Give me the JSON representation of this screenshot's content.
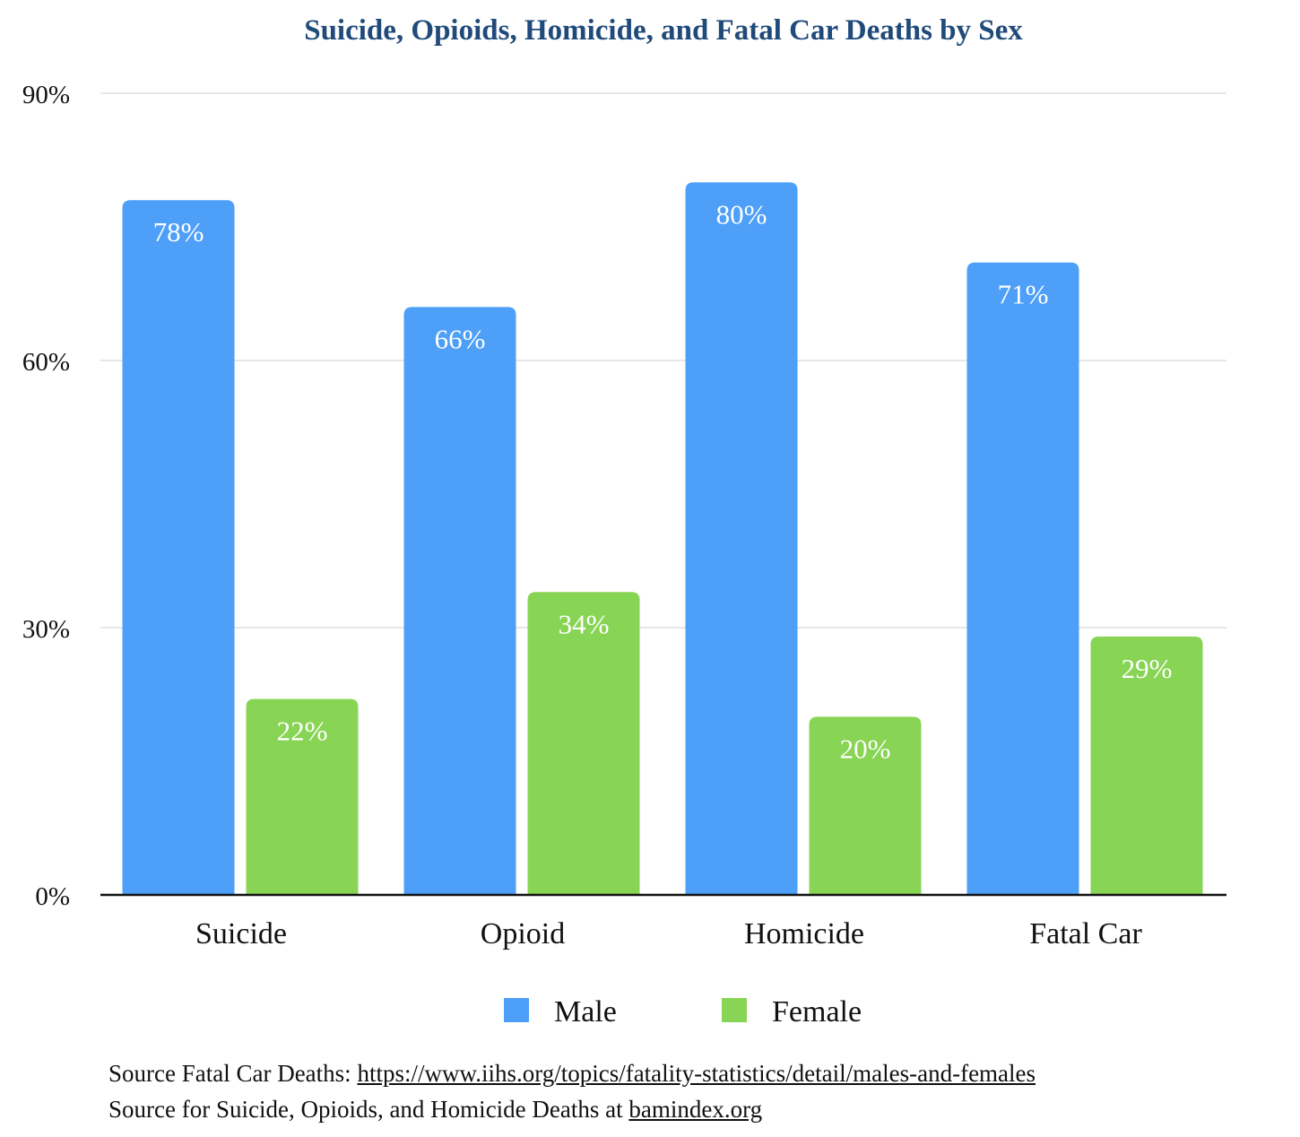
{
  "chart_data": {
    "type": "bar",
    "title": "Suicide, Opioids, Homicide, and Fatal Car Deaths by Sex",
    "categories": [
      "Suicide",
      "Opioid",
      "Homicide",
      "Fatal Car"
    ],
    "series": [
      {
        "name": "Male",
        "color": "#4d9ff7",
        "values": [
          78,
          66,
          80,
          71
        ],
        "labels": [
          "78%",
          "66%",
          "80%",
          "71%"
        ]
      },
      {
        "name": "Female",
        "color": "#88d454",
        "values": [
          22,
          34,
          20,
          29
        ],
        "labels": [
          "22%",
          "34%",
          "20%",
          "29%"
        ]
      }
    ],
    "ylim": [
      0,
      90
    ],
    "yticks": [
      0,
      30,
      60,
      90
    ],
    "ytick_labels": [
      "0%",
      "30%",
      "60%",
      "90%"
    ],
    "grid": true,
    "legend": "bottom"
  },
  "sources": {
    "line1_prefix": "Source Fatal Car Deaths: ",
    "line1_link": "https://www.iihs.org/topics/fatality-statistics/detail/males-and-females",
    "line2_prefix": "Source for Suicide, Opioids, and Homicide Deaths at ",
    "line2_link": "bamindex.org"
  }
}
